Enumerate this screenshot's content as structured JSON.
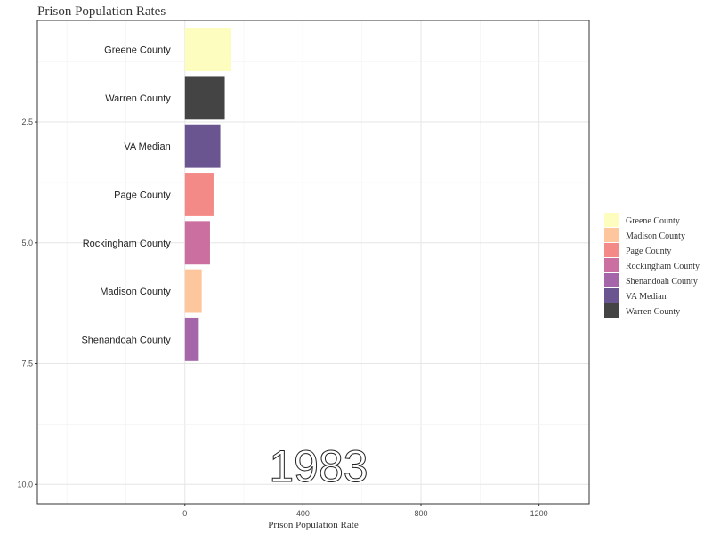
{
  "chart_data": {
    "type": "bar",
    "title": "Prison Population Rates",
    "xlabel": "Prison Population Rate",
    "ylabel": "",
    "year": "1983",
    "xlim": [
      -500,
      1370
    ],
    "ylim": [
      0.4,
      10.4
    ],
    "x_ticks": [
      0,
      400,
      800,
      1200
    ],
    "y_ticks": [
      2.5,
      5.0,
      7.5,
      10.0
    ],
    "y_tick_labels": [
      "2.5",
      "5.0",
      "7.5",
      "10.0"
    ],
    "grid": true,
    "legend_position": "right",
    "bars": [
      {
        "name": "Greene County",
        "value": 155,
        "rank": 1,
        "color": "#FCFDBF"
      },
      {
        "name": "Warren County",
        "value": 135,
        "rank": 2,
        "color": "#444444"
      },
      {
        "name": "VA Median",
        "value": 120,
        "rank": 3,
        "color": "#6B5591"
      },
      {
        "name": "Page County",
        "value": 97,
        "rank": 4,
        "color": "#F48A87"
      },
      {
        "name": "Rockingham County",
        "value": 85,
        "rank": 5,
        "color": "#CB6FA0"
      },
      {
        "name": "Madison County",
        "value": 57,
        "rank": 6,
        "color": "#FDC69C"
      },
      {
        "name": "Shenandoah County",
        "value": 47,
        "rank": 7,
        "color": "#A466A8"
      }
    ],
    "legend": [
      {
        "label": "Greene County",
        "color": "#FCFDBF"
      },
      {
        "label": "Madison County",
        "color": "#FDC69C"
      },
      {
        "label": "Page County",
        "color": "#F48A87"
      },
      {
        "label": "Rockingham County",
        "color": "#CB6FA0"
      },
      {
        "label": "Shenandoah County",
        "color": "#A466A8"
      },
      {
        "label": "VA Median",
        "color": "#6B5591"
      },
      {
        "label": "Warren County",
        "color": "#444444"
      }
    ]
  }
}
